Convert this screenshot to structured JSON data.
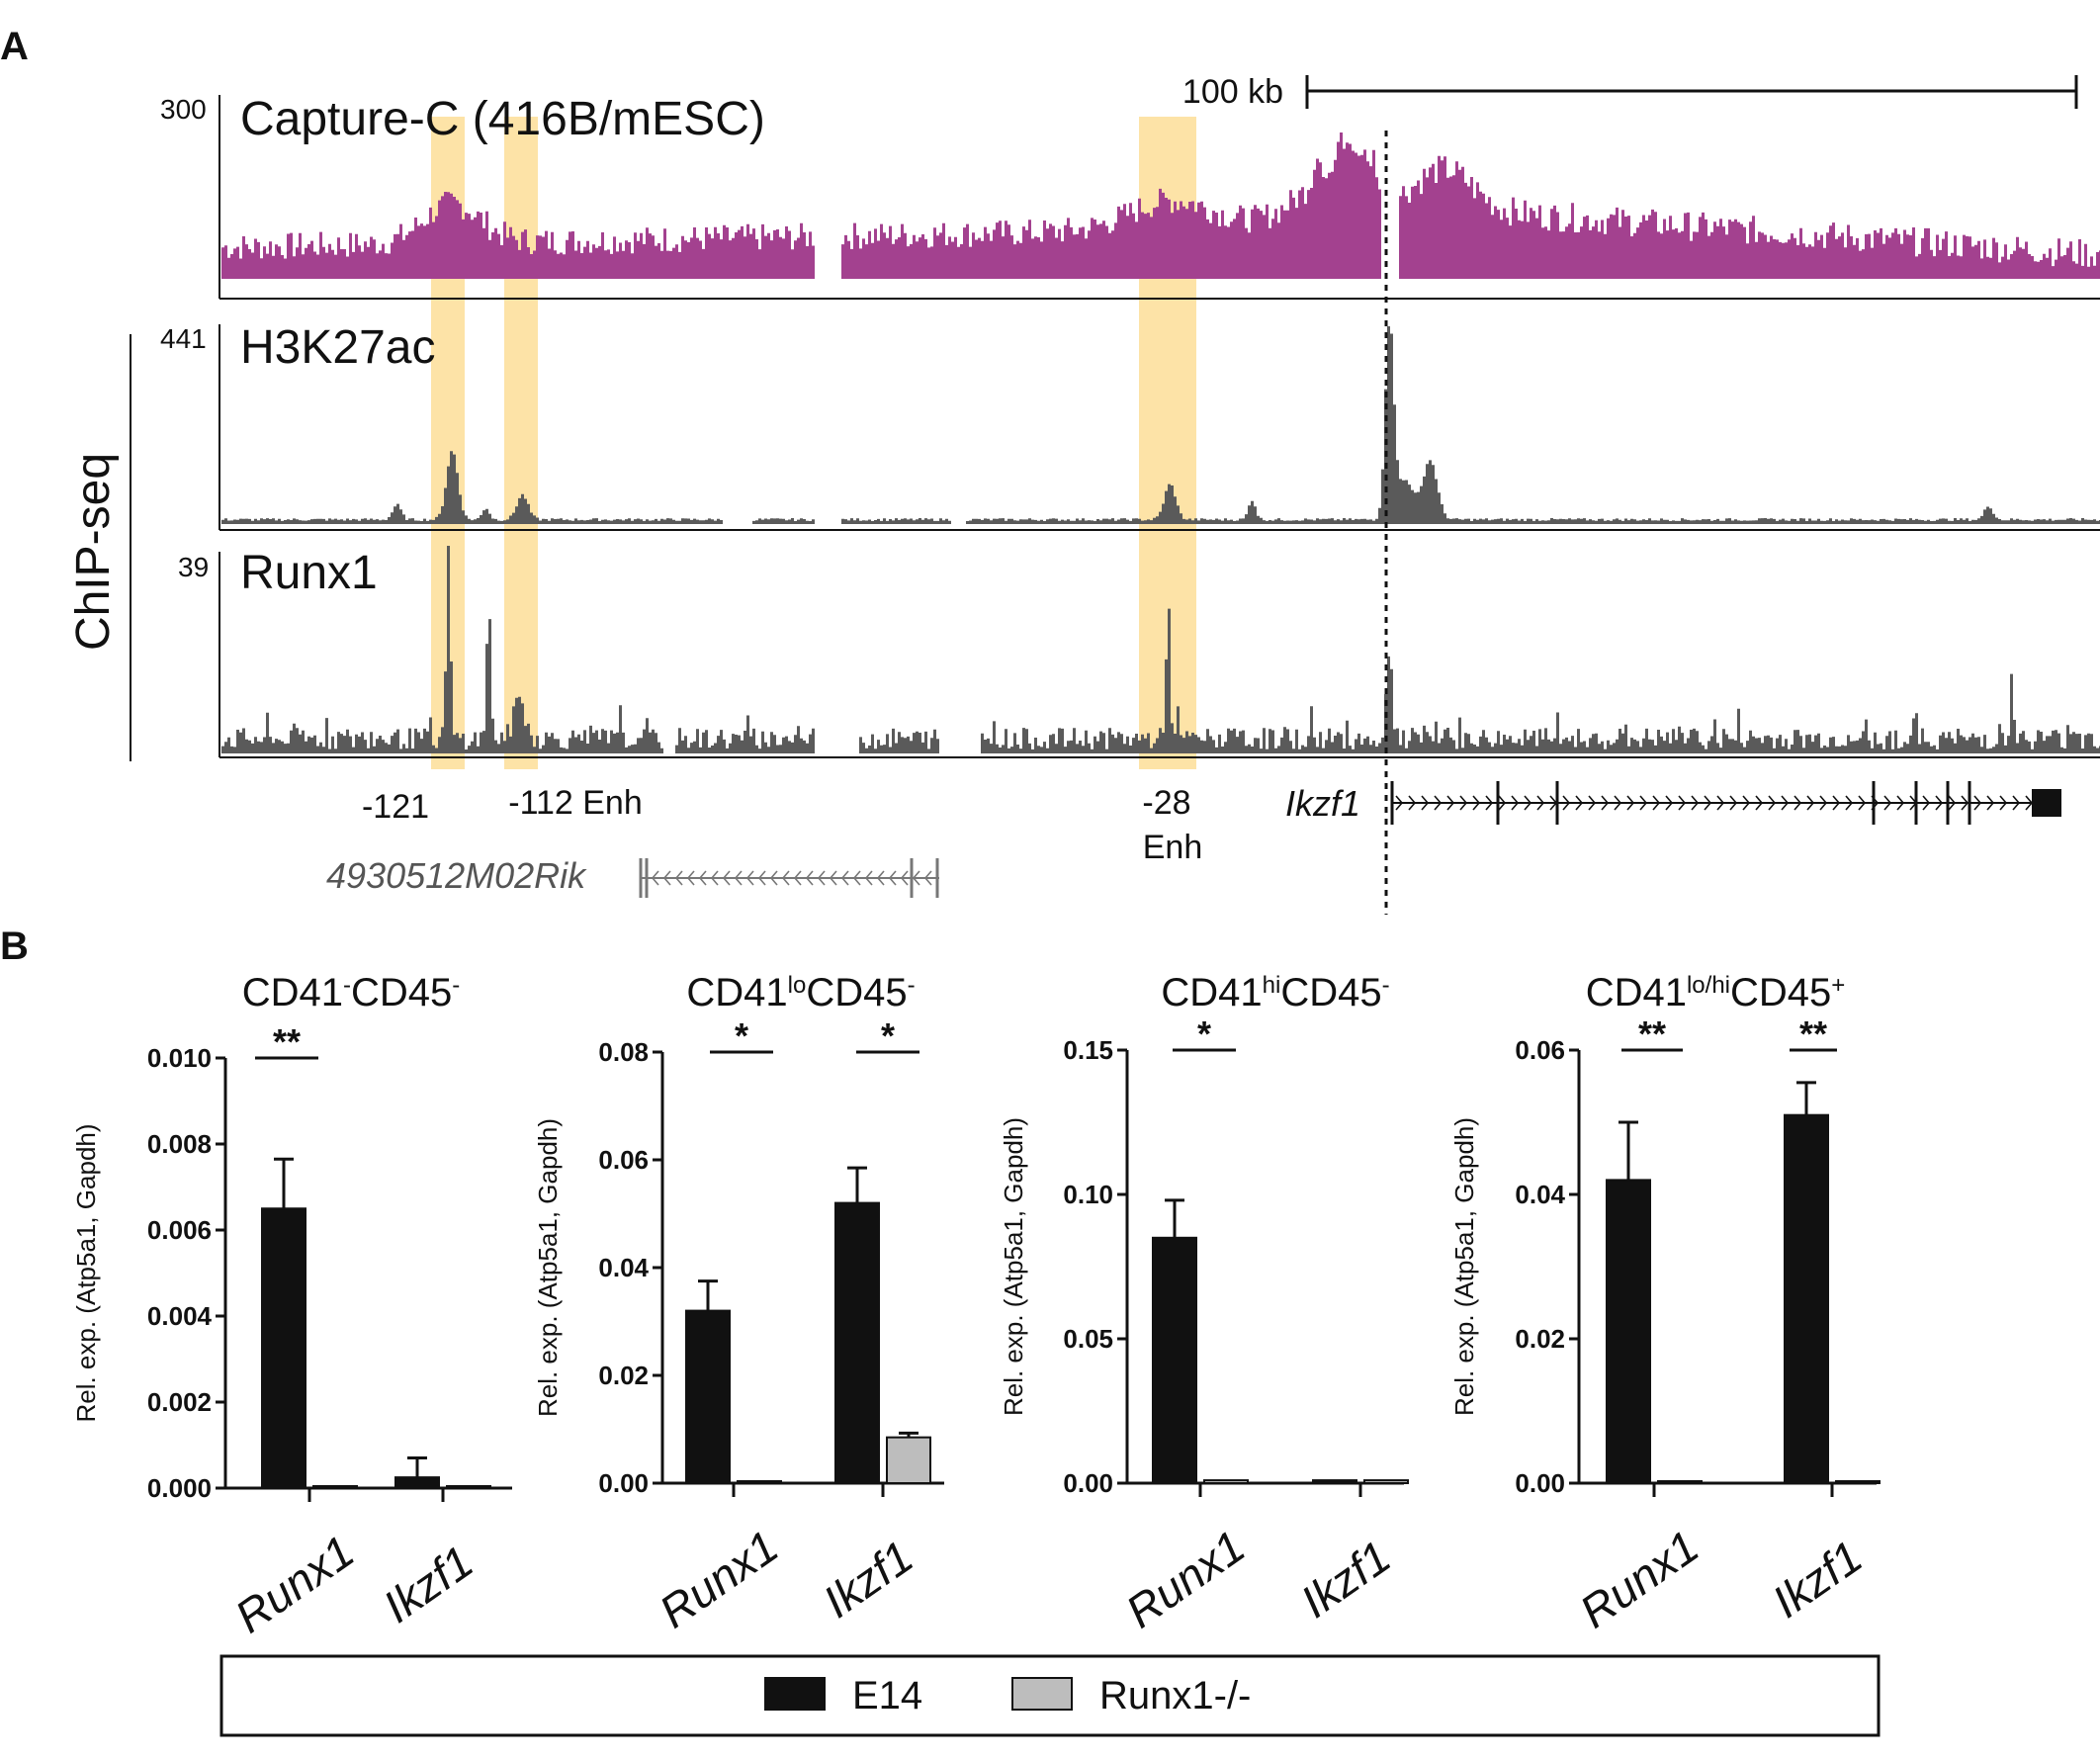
{
  "panels": {
    "a": "A",
    "b": "B"
  },
  "panel_a": {
    "scale_bar_label": "100 kb",
    "group_label": "ChIP-seq",
    "tracks": [
      {
        "label": "Capture-C (416B/mESC)",
        "max": "300",
        "color": "#a3418f"
      },
      {
        "label": "H3K27ac",
        "max": "441",
        "color": "#5a5a5a"
      },
      {
        "label": "Runx1",
        "max": "39",
        "color": "#5a5a5a"
      }
    ],
    "highlight_color": "#fde3a7",
    "regions": {
      "r121": "-121",
      "r112": "-112 Enh",
      "r28_line1": "-28",
      "r28_line2": "Enh"
    },
    "genes": {
      "ikzf1": "Ikzf1",
      "rik": "4930512M02Rik"
    }
  },
  "chart_data": [
    {
      "type": "bar",
      "title_parts": [
        "CD41",
        "-",
        "CD45",
        "-"
      ],
      "categories": [
        "Runx1",
        "Ikzf1"
      ],
      "series": [
        {
          "name": "E14",
          "values": [
            0.0065,
            0.00025
          ],
          "errors": [
            0.00115,
            0.00045
          ]
        },
        {
          "name": "Runx1-/-",
          "values": [
            0.0,
            0.0
          ],
          "errors": [
            0,
            0
          ]
        }
      ],
      "ylabel": "Rel. exp. (Atp5a1, Gapdh)",
      "ylim": [
        0,
        0.01
      ],
      "yticks": [
        "0.000",
        "0.002",
        "0.004",
        "0.006",
        "0.008",
        "0.010"
      ],
      "significance": [
        "**",
        ""
      ]
    },
    {
      "type": "bar",
      "title_parts": [
        "CD41",
        "lo",
        "CD45",
        "-"
      ],
      "categories": [
        "Runx1",
        "Ikzf1"
      ],
      "series": [
        {
          "name": "E14",
          "values": [
            0.032,
            0.052
          ],
          "errors": [
            0.0055,
            0.0065
          ]
        },
        {
          "name": "Runx1-/-",
          "values": [
            0.0003,
            0.0085
          ],
          "errors": [
            0,
            0.0008
          ]
        }
      ],
      "ylabel": "Rel. exp. (Atp5a1, Gapdh)",
      "ylim": [
        0,
        0.08
      ],
      "yticks": [
        "0.00",
        "0.02",
        "0.04",
        "0.06",
        "0.08"
      ],
      "significance": [
        "*",
        "*"
      ]
    },
    {
      "type": "bar",
      "title_parts": [
        "CD41",
        "hi",
        "CD45",
        "-"
      ],
      "categories": [
        "Runx1",
        "Ikzf1"
      ],
      "series": [
        {
          "name": "E14",
          "values": [
            0.085,
            0.001
          ],
          "errors": [
            0.013,
            0
          ]
        },
        {
          "name": "Runx1-/-",
          "values": [
            0.001,
            0.001
          ],
          "errors": [
            0,
            0
          ]
        }
      ],
      "ylabel": "Rel. exp. (Atp5a1, Gapdh)",
      "ylim": [
        0,
        0.15
      ],
      "yticks": [
        "0.00",
        "0.05",
        "0.10",
        "0.15"
      ],
      "significance": [
        "*",
        ""
      ]
    },
    {
      "type": "bar",
      "title_parts": [
        "CD41",
        "lo/hi",
        "CD45",
        "+"
      ],
      "categories": [
        "Runx1",
        "Ikzf1"
      ],
      "series": [
        {
          "name": "E14",
          "values": [
            0.042,
            0.051
          ],
          "errors": [
            0.008,
            0.0045
          ]
        },
        {
          "name": "Runx1-/-",
          "values": [
            0.0,
            0.0
          ],
          "errors": [
            0,
            0
          ]
        }
      ],
      "ylabel": "Rel. exp. (Atp5a1, Gapdh)",
      "ylim": [
        0,
        0.06
      ],
      "yticks": [
        "0.00",
        "0.02",
        "0.04",
        "0.06"
      ],
      "significance": [
        "**",
        "**"
      ]
    }
  ],
  "legend": [
    {
      "label": "E14",
      "color": "#111111"
    },
    {
      "label": "Runx1-/-",
      "color": "#bdbdbd"
    }
  ]
}
